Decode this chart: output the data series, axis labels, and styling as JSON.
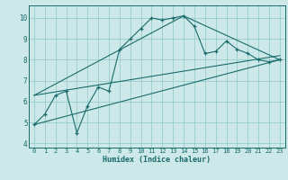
{
  "title": "",
  "xlabel": "Humidex (Indice chaleur)",
  "background_color": "#cce8e8",
  "grid_color": "#99cccc",
  "line_color": "#1a6b6b",
  "xlim": [
    -0.5,
    23.5
  ],
  "ylim": [
    3.8,
    10.6
  ],
  "xticks": [
    0,
    1,
    2,
    3,
    4,
    5,
    6,
    7,
    8,
    9,
    10,
    11,
    12,
    13,
    14,
    15,
    16,
    17,
    18,
    19,
    20,
    21,
    22,
    23
  ],
  "yticks": [
    4,
    5,
    6,
    7,
    8,
    9,
    10
  ],
  "main_x": [
    0,
    1,
    2,
    3,
    4,
    5,
    6,
    7,
    8,
    9,
    10,
    11,
    12,
    13,
    14,
    15,
    16,
    17,
    18,
    19,
    20,
    21,
    22,
    23
  ],
  "main_y": [
    4.9,
    5.4,
    6.3,
    6.5,
    4.5,
    5.8,
    6.7,
    6.5,
    8.5,
    9.0,
    9.5,
    10.0,
    9.9,
    10.0,
    10.1,
    9.6,
    8.3,
    8.4,
    8.9,
    8.5,
    8.3,
    8.0,
    7.9,
    8.0
  ],
  "line1_x": [
    0,
    23
  ],
  "line1_y": [
    4.9,
    8.0
  ],
  "line2_x": [
    0,
    23
  ],
  "line2_y": [
    6.3,
    8.2
  ],
  "line3_x": [
    0,
    14,
    23
  ],
  "line3_y": [
    6.3,
    10.1,
    8.0
  ]
}
